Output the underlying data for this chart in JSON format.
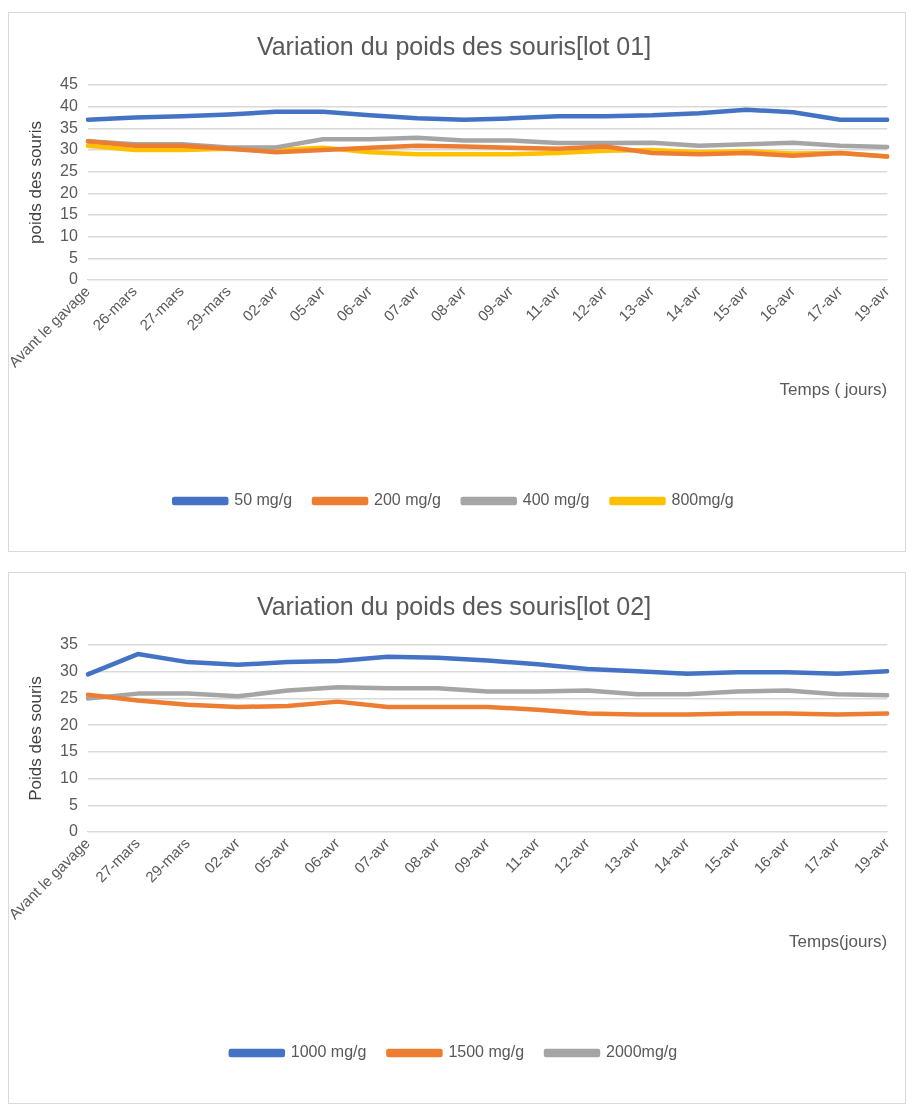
{
  "chart_data": [
    {
      "type": "line",
      "title": "Variation du poids des souris[lot 01]",
      "ylabel": "poids des souris",
      "xlabel": "Temps ( jours)",
      "categories": [
        "Avant le gavage",
        "26-mars",
        "27-mars",
        "29-mars",
        "02-avr",
        "05-avr",
        "06-avr",
        "07-avr",
        "08-avr",
        "09-avr",
        "11-avr",
        "12-avr",
        "13-avr",
        "14-avr",
        "15-avr",
        "16-avr",
        "17-avr",
        "19-avr"
      ],
      "series": [
        {
          "name": "50 mg/g",
          "color": "#4472c4",
          "values": [
            37,
            37.5,
            37.8,
            38.2,
            38.8,
            38.8,
            38,
            37.3,
            37,
            37.3,
            37.8,
            37.8,
            38,
            38.5,
            39.3,
            38.7,
            37,
            37
          ]
        },
        {
          "name": "200 mg/g",
          "color": "#ed7d31",
          "values": [
            32,
            31,
            31,
            30.3,
            29.5,
            30,
            30.5,
            31,
            30.8,
            30.5,
            30.3,
            30.8,
            29.3,
            29,
            29.3,
            28.7,
            29.3,
            28.5
          ]
        },
        {
          "name": "400 mg/g",
          "color": "#a5a5a5",
          "values": [
            32,
            31.3,
            31.3,
            30.6,
            30.6,
            32.5,
            32.5,
            32.8,
            32.2,
            32.2,
            31.6,
            31.6,
            31.7,
            31,
            31.3,
            31.7,
            31,
            30.7
          ]
        },
        {
          "name": "800mg/g",
          "color": "#ffc000",
          "values": [
            31,
            30,
            30,
            30.3,
            30,
            30.5,
            29.5,
            29,
            29,
            29,
            29.3,
            29.8,
            30,
            29.5,
            29.7,
            29.2,
            29.3,
            28.5
          ]
        }
      ],
      "ylim": [
        0,
        45
      ],
      "yticks": [
        0,
        5,
        10,
        15,
        20,
        25,
        30,
        35,
        40,
        45
      ],
      "grid": "y",
      "legend": "bottom",
      "marker": "none",
      "line_style": "solid"
    },
    {
      "type": "line",
      "title": "Variation du poids des souris[lot 02]",
      "ylabel": "Poids des souris",
      "xlabel": "Temps(jours)",
      "categories": [
        "Avant le gavage",
        "27-mars",
        "29-mars",
        "02-avr",
        "05-avr",
        "06-avr",
        "07-avr",
        "08-avr",
        "09-avr",
        "11-avr",
        "12-avr",
        "13-avr",
        "14-avr",
        "15-avr",
        "16-avr",
        "17-avr",
        "19-avr"
      ],
      "series": [
        {
          "name": "1000 mg/g",
          "color": "#4472c4",
          "values": [
            29.5,
            33.3,
            31.8,
            31.3,
            31.8,
            32,
            32.8,
            32.6,
            32.1,
            31.4,
            30.5,
            30.1,
            29.6,
            29.9,
            29.9,
            29.6,
            30.1
          ]
        },
        {
          "name": "1500 mg/g",
          "color": "#ed7d31",
          "values": [
            25.7,
            24.6,
            23.8,
            23.4,
            23.6,
            24.4,
            23.4,
            23.4,
            23.4,
            22.9,
            22.2,
            22,
            22,
            22.2,
            22.2,
            22,
            22.2
          ]
        },
        {
          "name": "2000mg/g",
          "color": "#a5a5a5",
          "values": [
            25,
            25.9,
            25.9,
            25.4,
            26.5,
            27.1,
            26.9,
            26.9,
            26.3,
            26.3,
            26.5,
            25.8,
            25.8,
            26.3,
            26.5,
            25.8,
            25.6
          ]
        }
      ],
      "ylim": [
        0,
        35
      ],
      "yticks": [
        0,
        5,
        10,
        15,
        20,
        25,
        30,
        35
      ],
      "grid": "y",
      "legend": "bottom",
      "marker": "none",
      "line_style": "solid"
    }
  ]
}
